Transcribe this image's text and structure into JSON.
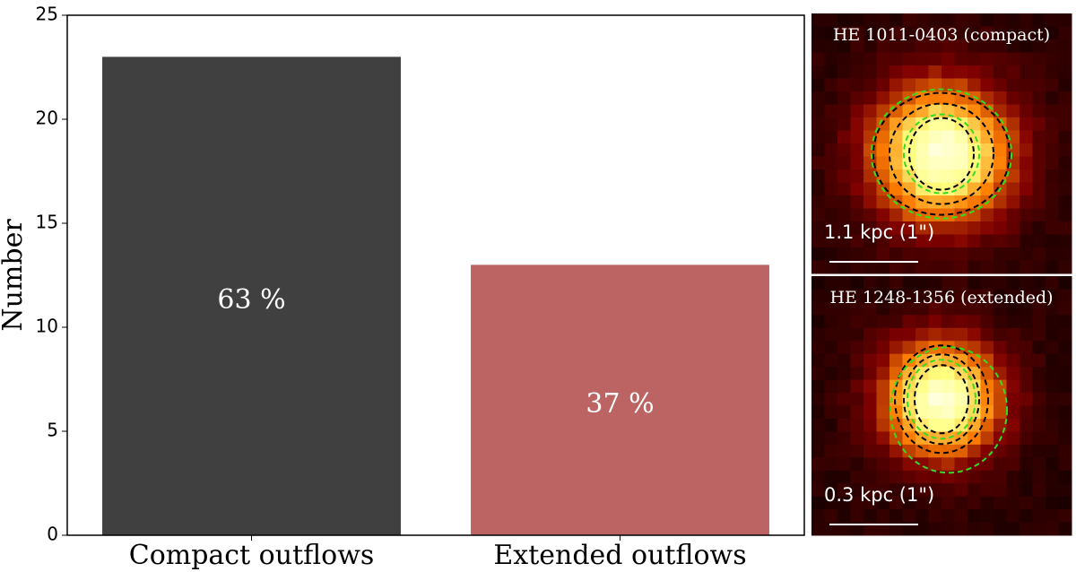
{
  "chart_data": [
    {
      "type": "bar",
      "y_label": "Number",
      "categories": [
        "Compact outflows",
        "Extended outflows"
      ],
      "values": [
        23,
        13
      ],
      "colors": [
        "#404040",
        "#bc6464"
      ],
      "annotations": [
        "63 %",
        "37 %"
      ],
      "ylim": [
        0,
        25
      ],
      "yticks": [
        0,
        5,
        10,
        15,
        20,
        25
      ]
    },
    {
      "type": "image",
      "title": "HE 1011-0403 (compact)",
      "scale_label": "1.1 kpc (1\")"
    },
    {
      "type": "image",
      "title": "HE 1248-1356 (extended)",
      "scale_label": "0.3 kpc (1\")"
    }
  ]
}
